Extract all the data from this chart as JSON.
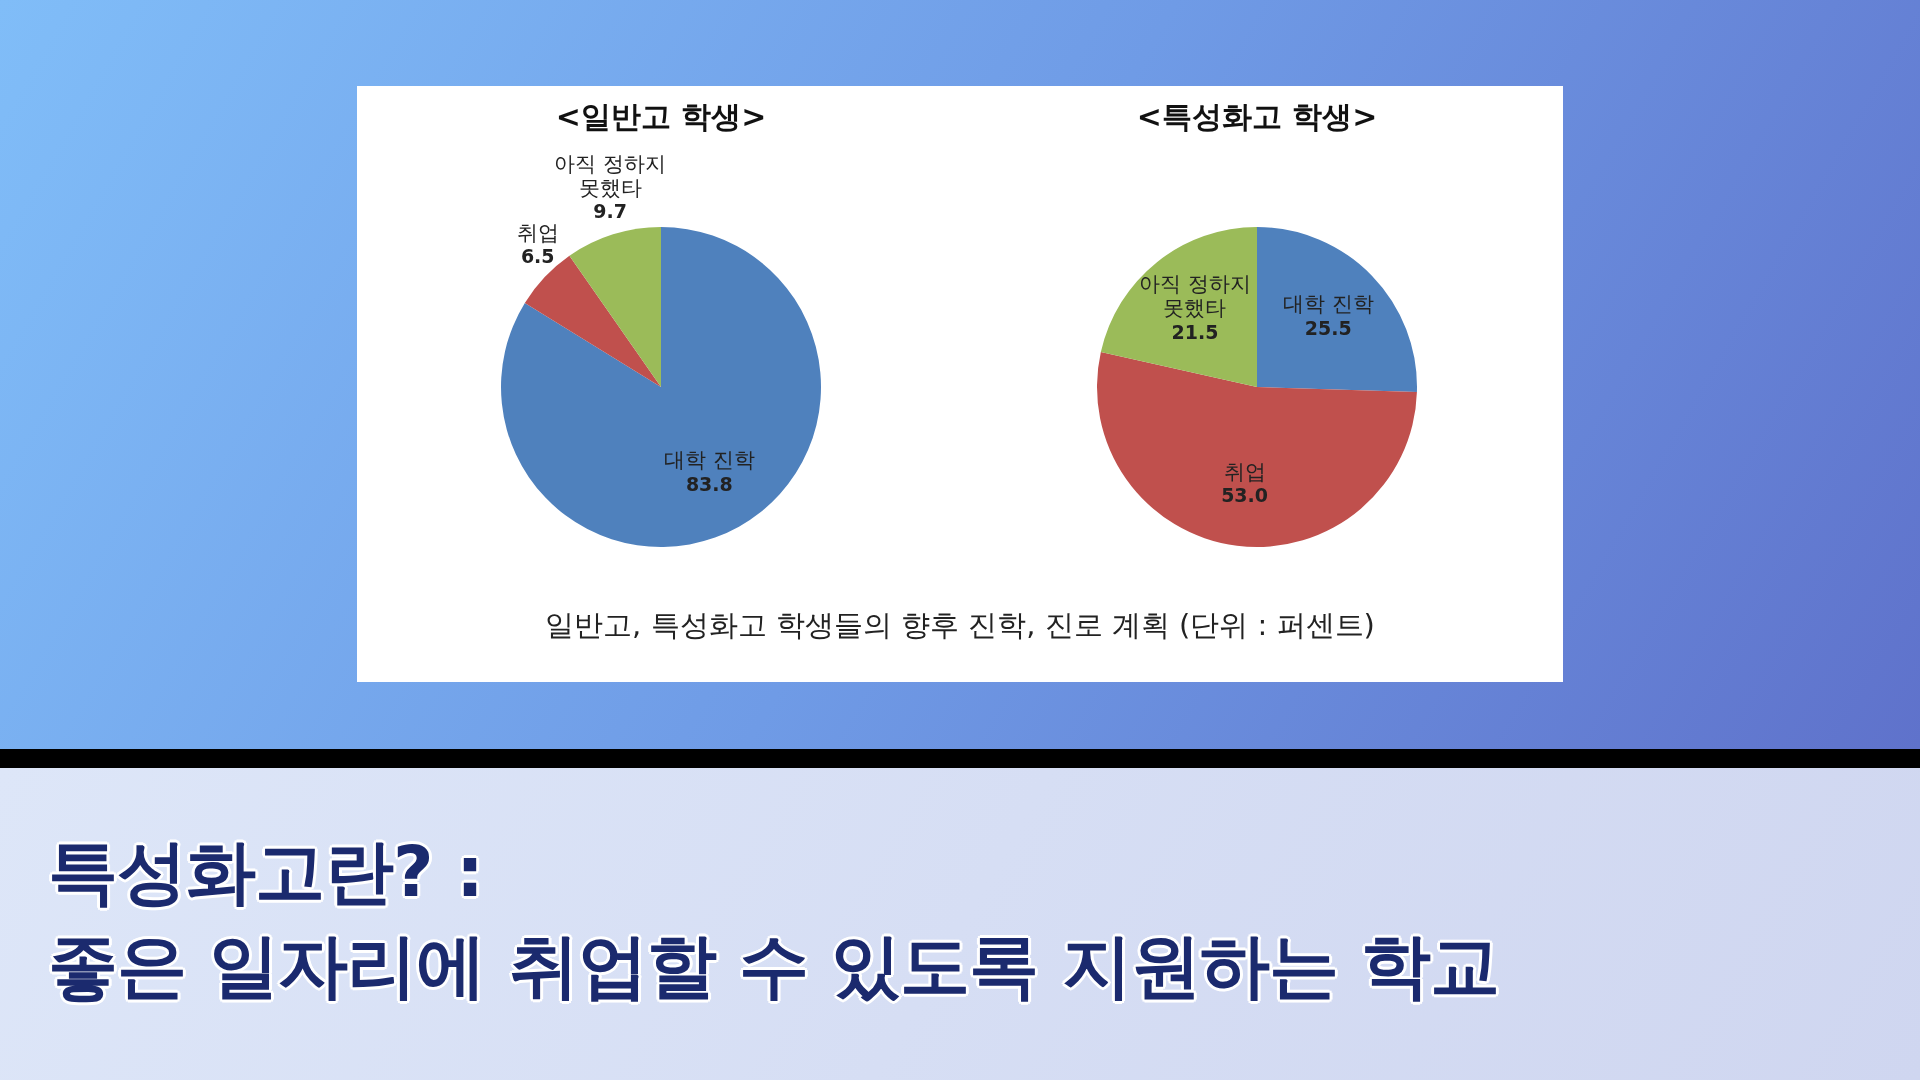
{
  "chart_data": [
    {
      "type": "pie",
      "title": "<일반고 학생>",
      "categories": [
        "대학 진학",
        "취업",
        "아직 정하지 못했타"
      ],
      "values": [
        83.8,
        6.5,
        9.7
      ],
      "value_labels": [
        "83.8",
        "6.5",
        "9.7"
      ],
      "colors": [
        "#4f81bd",
        "#c0504d",
        "#9bbb59"
      ],
      "annotations": [
        "일반고, 특성화고 학생들의 향후 진학, 진로 계획 (단위 : 퍼센트)"
      ]
    },
    {
      "type": "pie",
      "title": "<특성화고 학생>",
      "categories": [
        "대학 진학",
        "취업",
        "아직 정하지 못했타"
      ],
      "values": [
        25.5,
        53.0,
        21.5
      ],
      "value_labels": [
        "25.5",
        "53.0",
        "21.5"
      ],
      "colors": [
        "#4f81bd",
        "#c0504d",
        "#9bbb59"
      ]
    },
    {
      "type": "other",
      "title": "특성화고란? :",
      "subtitle": "좋은 일자리에 취업할 수 있도록 지원하는 학교"
    }
  ]
}
